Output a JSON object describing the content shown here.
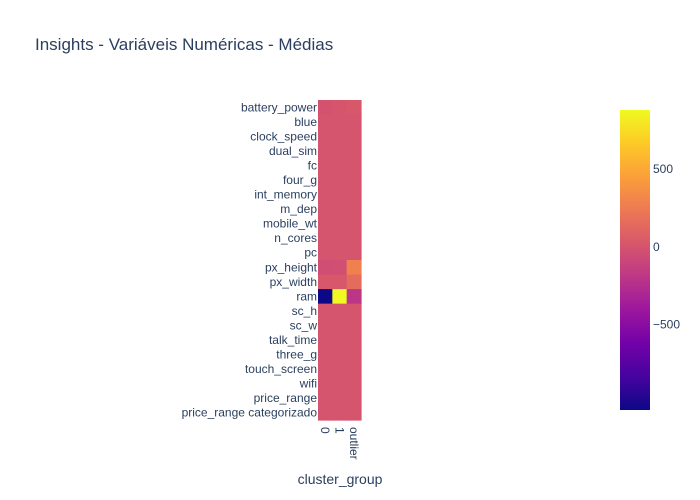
{
  "chart_data": {
    "type": "heatmap",
    "title": "Insights - Variáveis Numéricas - Médias",
    "xlabel": "cluster_group",
    "ylabel": "",
    "x_categories": [
      "0",
      "1",
      "outlier"
    ],
    "y_categories": [
      "battery_power",
      "blue",
      "clock_speed",
      "dual_sim",
      "fc",
      "four_g",
      "int_memory",
      "m_dep",
      "mobile_wt",
      "n_cores",
      "pc",
      "px_height",
      "px_width",
      "ram",
      "sc_h",
      "sc_w",
      "talk_time",
      "three_g",
      "touch_screen",
      "wifi",
      "price_range",
      "price_range categorizado"
    ],
    "z": [
      [
        -10,
        10,
        20
      ],
      [
        0,
        0,
        0
      ],
      [
        0,
        0,
        0
      ],
      [
        0,
        0,
        0
      ],
      [
        0,
        0,
        0
      ],
      [
        0,
        0,
        0
      ],
      [
        0,
        0,
        0
      ],
      [
        0,
        0,
        0
      ],
      [
        0,
        0,
        0
      ],
      [
        0,
        0,
        0
      ],
      [
        0,
        0,
        0
      ],
      [
        -40,
        -30,
        280
      ],
      [
        20,
        20,
        150
      ],
      [
        -1050,
        880,
        -200
      ],
      [
        0,
        0,
        0
      ],
      [
        0,
        0,
        0
      ],
      [
        0,
        0,
        0
      ],
      [
        0,
        0,
        0
      ],
      [
        0,
        0,
        0
      ],
      [
        0,
        0,
        0
      ],
      [
        0,
        0,
        0
      ],
      [
        0,
        0,
        0
      ]
    ],
    "zmin": -1050,
    "zmax": 880,
    "colorscale": [
      "#0d0887",
      "#46039f",
      "#7201a8",
      "#9c179e",
      "#bd3786",
      "#d8576b",
      "#ed7953",
      "#fb9f3a",
      "#fdca26",
      "#f0f921"
    ],
    "colorbar_ticks": [
      500,
      0,
      -500
    ],
    "colorbar_tick_labels": [
      "500",
      "0",
      "−500"
    ]
  }
}
